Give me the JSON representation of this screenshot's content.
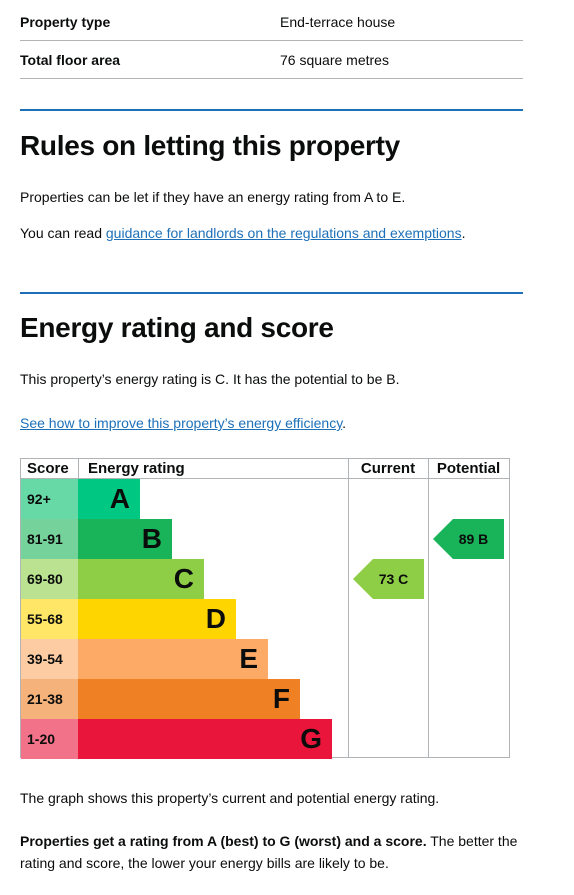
{
  "summary": [
    {
      "label": "Property type",
      "value": "End-terrace house"
    },
    {
      "label": "Total floor area",
      "value": "76 square metres"
    }
  ],
  "letting": {
    "heading": "Rules on letting this property",
    "para1": "Properties can be let if they have an energy rating from A to E.",
    "para2_prefix": "You can read ",
    "para2_link": "guidance for landlords on the regulations and exemptions",
    "para2_suffix": "."
  },
  "energy": {
    "heading": "Energy rating and score",
    "para1": "This property’s energy rating is C. It has the potential to be B.",
    "improve_link": "See how to improve this property’s energy efficiency",
    "improve_suffix": "."
  },
  "chart_data": {
    "type": "table",
    "headers": {
      "score": "Score",
      "rating": "Energy rating",
      "current": "Current",
      "potential": "Potential"
    },
    "bands": [
      {
        "score": "92+",
        "letter": "A",
        "color": "#00c781",
        "light": "#66d9a6"
      },
      {
        "score": "81-91",
        "letter": "B",
        "color": "#19b459",
        "light": "#75d29b"
      },
      {
        "score": "69-80",
        "letter": "C",
        "color": "#8dce46",
        "light": "#bae290"
      },
      {
        "score": "55-68",
        "letter": "D",
        "color": "#ffd500",
        "light": "#ffe666"
      },
      {
        "score": "39-54",
        "letter": "E",
        "color": "#fcaa65",
        "light": "#fdcca3"
      },
      {
        "score": "21-38",
        "letter": "F",
        "color": "#ef8023",
        "light": "#f5b37b"
      },
      {
        "score": "1-20",
        "letter": "G",
        "color": "#e9153b",
        "light": "#f27389"
      }
    ],
    "current": {
      "score": 73,
      "letter": "C",
      "label": "73 C",
      "band_index": 2,
      "color": "#8dce46"
    },
    "potential": {
      "score": 89,
      "letter": "B",
      "label": "89 B",
      "band_index": 1,
      "color": "#19b459"
    }
  },
  "footer": {
    "graph_caption": "The graph shows this property’s current and potential energy rating.",
    "bold_text": "Properties get a rating from A (best) to G (worst) and a score.",
    "rest_text": " The better the rating and score, the lower your energy bills are likely to be."
  }
}
